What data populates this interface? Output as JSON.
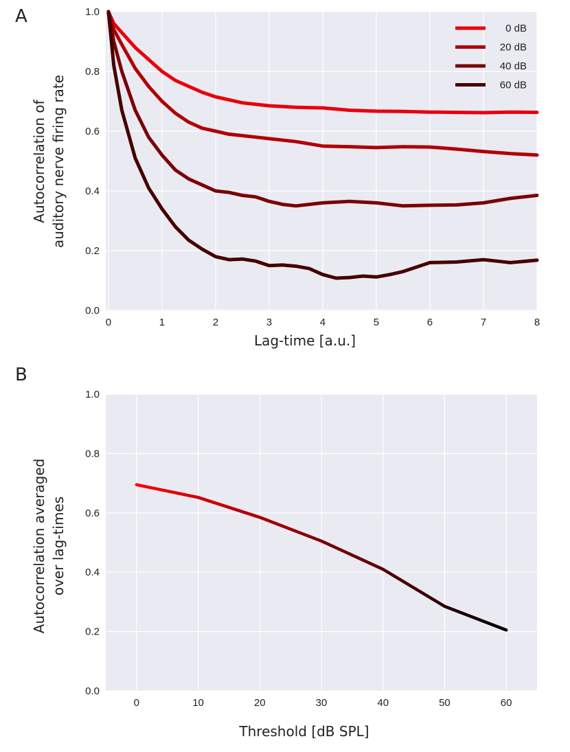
{
  "colors": {
    "background": "#EAEAF2",
    "grid": "#FFFFFF",
    "series": [
      "#E8000B",
      "#B00006",
      "#7A0204",
      "#450000"
    ],
    "gradient_start": "#FF0000",
    "gradient_end": "#000000"
  },
  "chart_data": [
    {
      "type": "line",
      "panel_label": "A",
      "xlabel": "Lag-time [a.u.]",
      "ylabel": [
        "Autocorrelation of",
        "auditory nerve firing rate"
      ],
      "xlim": [
        -0.05,
        8
      ],
      "ylim": [
        0,
        1
      ],
      "xticks": [
        0,
        1,
        2,
        3,
        4,
        5,
        6,
        7,
        8
      ],
      "yticks": [
        "0.0",
        "0.2",
        "0.4",
        "0.6",
        "0.8",
        "1.0"
      ],
      "grid": true,
      "legend_position": "top-right",
      "series": [
        {
          "name": "0 dB",
          "x": [
            0,
            0.1,
            0.25,
            0.5,
            0.75,
            1,
            1.25,
            1.5,
            1.75,
            2,
            2.25,
            2.5,
            2.75,
            3,
            3.5,
            4,
            4.5,
            5,
            5.5,
            6,
            6.5,
            7,
            7.5,
            8
          ],
          "y": [
            1.0,
            0.96,
            0.93,
            0.88,
            0.84,
            0.8,
            0.77,
            0.75,
            0.73,
            0.715,
            0.705,
            0.695,
            0.69,
            0.685,
            0.68,
            0.678,
            0.67,
            0.667,
            0.666,
            0.664,
            0.663,
            0.662,
            0.664,
            0.663
          ]
        },
        {
          "name": "20 dB",
          "x": [
            0,
            0.1,
            0.25,
            0.5,
            0.75,
            1,
            1.25,
            1.5,
            1.75,
            2,
            2.25,
            2.5,
            2.75,
            3,
            3.5,
            4,
            4.5,
            5,
            5.5,
            6,
            6.5,
            7,
            7.5,
            8
          ],
          "y": [
            1.0,
            0.94,
            0.89,
            0.81,
            0.75,
            0.7,
            0.66,
            0.63,
            0.61,
            0.6,
            0.59,
            0.585,
            0.58,
            0.575,
            0.565,
            0.55,
            0.548,
            0.545,
            0.548,
            0.547,
            0.54,
            0.532,
            0.525,
            0.52
          ]
        },
        {
          "name": "40 dB",
          "x": [
            0,
            0.1,
            0.25,
            0.5,
            0.75,
            1,
            1.25,
            1.5,
            1.75,
            2,
            2.25,
            2.5,
            2.75,
            3,
            3.25,
            3.5,
            4,
            4.5,
            5,
            5.5,
            6,
            6.5,
            7,
            7.5,
            8
          ],
          "y": [
            1.0,
            0.9,
            0.8,
            0.67,
            0.58,
            0.52,
            0.47,
            0.44,
            0.42,
            0.4,
            0.395,
            0.385,
            0.38,
            0.365,
            0.355,
            0.35,
            0.36,
            0.365,
            0.36,
            0.35,
            0.352,
            0.353,
            0.36,
            0.375,
            0.385
          ]
        },
        {
          "name": "60 dB",
          "x": [
            0,
            0.1,
            0.25,
            0.5,
            0.75,
            1,
            1.25,
            1.5,
            1.75,
            2,
            2.25,
            2.5,
            2.75,
            3,
            3.25,
            3.5,
            3.75,
            4,
            4.25,
            4.5,
            4.75,
            5,
            5.25,
            5.5,
            6,
            6.5,
            7,
            7.25,
            7.5,
            8
          ],
          "y": [
            1.0,
            0.82,
            0.67,
            0.51,
            0.41,
            0.34,
            0.28,
            0.235,
            0.205,
            0.18,
            0.17,
            0.172,
            0.165,
            0.15,
            0.152,
            0.148,
            0.14,
            0.12,
            0.108,
            0.11,
            0.115,
            0.112,
            0.12,
            0.13,
            0.16,
            0.162,
            0.17,
            0.165,
            0.16,
            0.168
          ]
        }
      ]
    },
    {
      "type": "line",
      "panel_label": "B",
      "xlabel": "Threshold [dB SPL]",
      "ylabel": [
        "Autocorrelation averaged",
        "over lag-times"
      ],
      "xlim": [
        -5,
        65
      ],
      "ylim": [
        0,
        1
      ],
      "xticks": [
        0,
        10,
        20,
        30,
        40,
        50,
        60
      ],
      "yticks": [
        "0.0",
        "0.2",
        "0.4",
        "0.6",
        "0.8",
        "1.0"
      ],
      "grid": true,
      "line_color": "gradient red to black",
      "x": [
        0,
        10,
        20,
        30,
        40,
        50,
        60
      ],
      "y": [
        0.695,
        0.652,
        0.585,
        0.505,
        0.41,
        0.285,
        0.205
      ]
    }
  ]
}
